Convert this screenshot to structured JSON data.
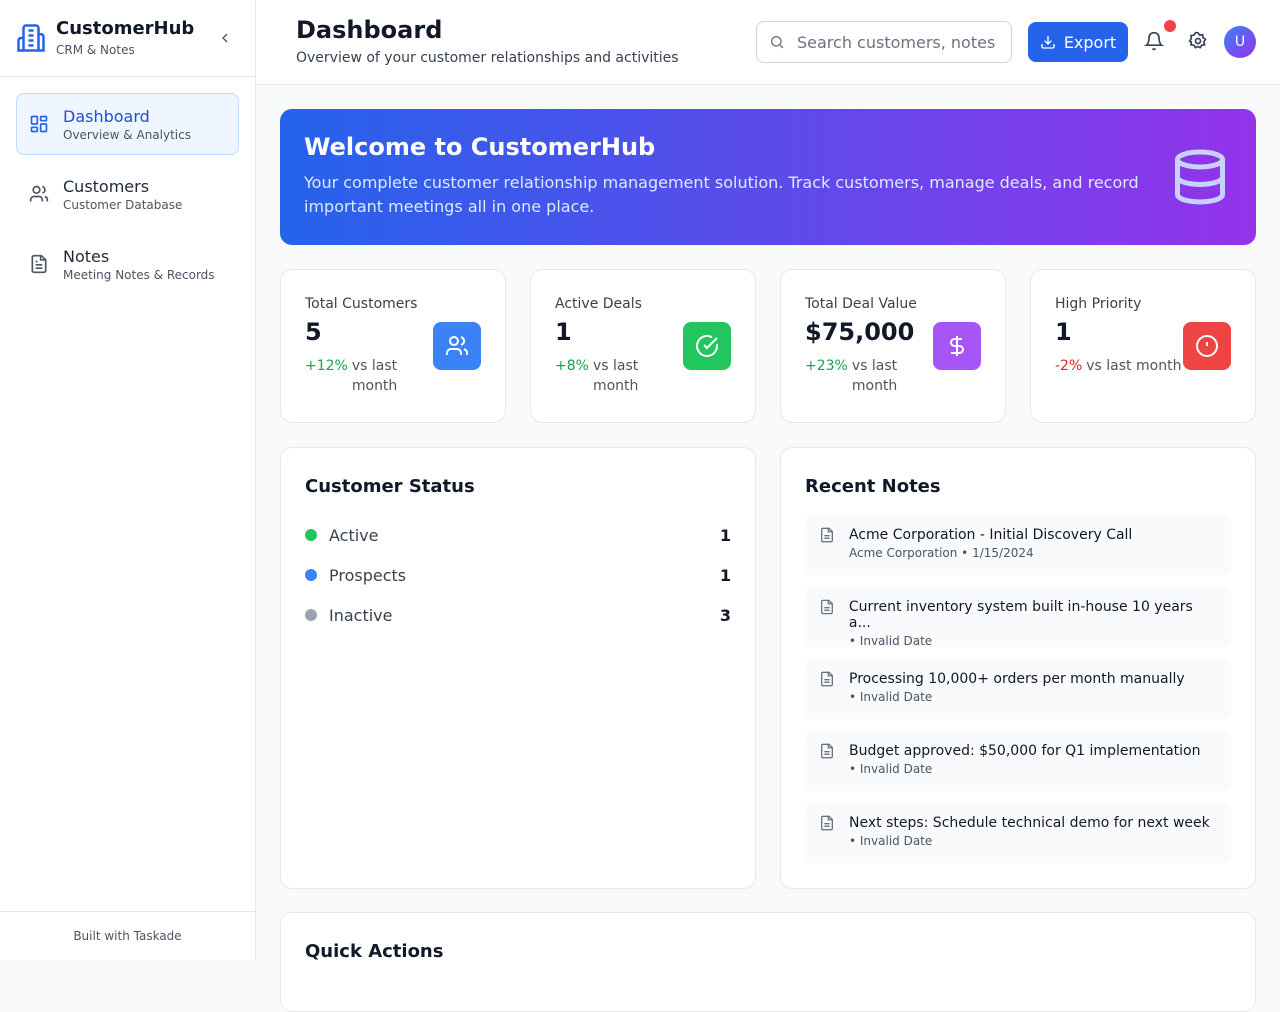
{
  "sidebar": {
    "brand": "CustomerHub",
    "tagline": "CRM & Notes",
    "nav": [
      {
        "label": "Dashboard",
        "sub": "Overview & Analytics"
      },
      {
        "label": "Customers",
        "sub": "Customer Database"
      },
      {
        "label": "Notes",
        "sub": "Meeting Notes & Records"
      }
    ],
    "footer": "Built with Taskade"
  },
  "header": {
    "title": "Dashboard",
    "subtitle": "Overview of your customer relationships and activities",
    "search_placeholder": "Search customers, notes",
    "export": "Export",
    "avatar": "U"
  },
  "banner": {
    "title": "Welcome to CustomerHub",
    "text": "Your complete customer relationship management solution. Track customers, manage deals, and record important meetings all in one place."
  },
  "stats": [
    {
      "label": "Total Customers",
      "value": "5",
      "change": "+12%",
      "note": "vs last month"
    },
    {
      "label": "Active Deals",
      "value": "1",
      "change": "+8%",
      "note": "vs last month"
    },
    {
      "label": "Total Deal Value",
      "value": "$75,000",
      "change": "+23%",
      "note": "vs last month"
    },
    {
      "label": "High Priority",
      "value": "1",
      "change": "-2%",
      "note": "vs last month"
    }
  ],
  "status": {
    "title": "Customer Status",
    "items": [
      {
        "label": "Active",
        "count": "1"
      },
      {
        "label": "Prospects",
        "count": "1"
      },
      {
        "label": "Inactive",
        "count": "3"
      }
    ]
  },
  "notes": {
    "title": "Recent Notes",
    "items": [
      {
        "title": "Acme Corporation - Initial Discovery Call",
        "meta": "Acme Corporation • 1/15/2024"
      },
      {
        "title": "Current inventory system built in-house 10 years a...",
        "meta": "• Invalid Date"
      },
      {
        "title": "Processing 10,000+ orders per month manually",
        "meta": "• Invalid Date"
      },
      {
        "title": "Budget approved: $50,000 for Q1 implementation",
        "meta": "• Invalid Date"
      },
      {
        "title": "Next steps: Schedule technical demo for next week",
        "meta": "• Invalid Date"
      }
    ]
  },
  "quick_actions": {
    "title": "Quick Actions"
  }
}
